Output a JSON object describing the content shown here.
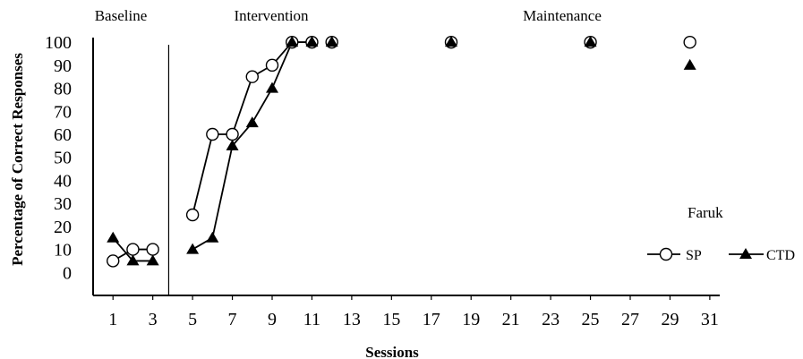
{
  "chart_data": {
    "type": "line",
    "title": "",
    "xlabel": "Sessions",
    "ylabel": "Percentage of Correct Responses",
    "participant": "Faruk",
    "xlim": [
      0,
      31.5
    ],
    "ylim": [
      -10,
      102
    ],
    "x_ticks": [
      1,
      3,
      5,
      7,
      9,
      11,
      13,
      15,
      17,
      19,
      21,
      23,
      25,
      27,
      29,
      31
    ],
    "y_ticks": [
      0,
      10,
      20,
      30,
      40,
      50,
      60,
      70,
      80,
      90,
      100
    ],
    "phases": [
      {
        "label": "Baseline",
        "start": 0,
        "end": 3.8
      },
      {
        "label": "Intervention",
        "start": 3.8,
        "end": 12.5
      },
      {
        "label": "Maintenance",
        "start": 12.5,
        "end": 31.5
      }
    ],
    "phase_change_lines": [
      3.8
    ],
    "grid": false,
    "legend_position": "right",
    "series": [
      {
        "name": "SP",
        "marker": "circle-open",
        "points": [
          {
            "x": 1,
            "y": 5
          },
          {
            "x": 2,
            "y": 10
          },
          {
            "x": 3,
            "y": 10
          },
          {
            "x": 5,
            "y": 25
          },
          {
            "x": 6,
            "y": 60
          },
          {
            "x": 7,
            "y": 60
          },
          {
            "x": 8,
            "y": 85
          },
          {
            "x": 9,
            "y": 90
          },
          {
            "x": 10,
            "y": 100
          },
          {
            "x": 11,
            "y": 100
          },
          {
            "x": 12,
            "y": 100
          },
          {
            "x": 18,
            "y": 100
          },
          {
            "x": 25,
            "y": 100
          },
          {
            "x": 30,
            "y": 100
          }
        ],
        "segments": [
          [
            0,
            2
          ],
          [
            3,
            9
          ],
          [
            10,
            10
          ],
          [
            11,
            11
          ],
          [
            12,
            12
          ],
          [
            13,
            13
          ]
        ]
      },
      {
        "name": "CTD",
        "marker": "triangle-filled",
        "points": [
          {
            "x": 1,
            "y": 15
          },
          {
            "x": 2,
            "y": 5
          },
          {
            "x": 3,
            "y": 5
          },
          {
            "x": 5,
            "y": 10
          },
          {
            "x": 6,
            "y": 15
          },
          {
            "x": 7,
            "y": 55
          },
          {
            "x": 8,
            "y": 65
          },
          {
            "x": 9,
            "y": 80
          },
          {
            "x": 10,
            "y": 100
          },
          {
            "x": 11,
            "y": 100
          },
          {
            "x": 12,
            "y": 100
          },
          {
            "x": 18,
            "y": 100
          },
          {
            "x": 25,
            "y": 100
          },
          {
            "x": 30,
            "y": 90
          }
        ],
        "segments": [
          [
            0,
            2
          ],
          [
            3,
            9
          ],
          [
            10,
            10
          ],
          [
            11,
            11
          ],
          [
            12,
            12
          ],
          [
            13,
            13
          ]
        ]
      }
    ]
  }
}
